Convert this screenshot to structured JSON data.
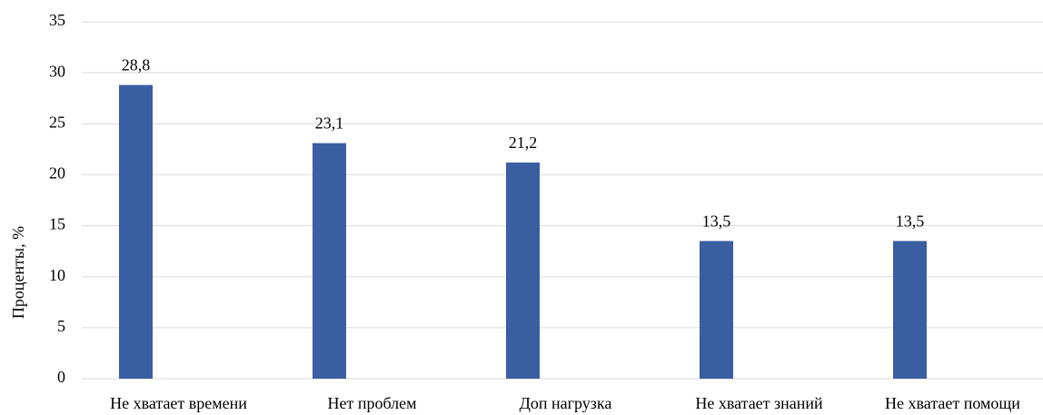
{
  "chart_data": {
    "type": "bar",
    "y_label": "Проценты, %",
    "categories": [
      "Не хватает времени",
      "Нет проблем",
      "Доп нагрузка",
      "Не хватает знаний",
      "Не хватает помощи"
    ],
    "values": [
      28.8,
      23.1,
      21.2,
      13.5,
      13.5
    ],
    "value_labels": [
      "28,8",
      "23,1",
      "21,2",
      "13,5",
      "13,5"
    ],
    "color": "#3a5ea2",
    "ylim": [
      0,
      35
    ],
    "yticks": [
      0,
      5,
      10,
      15,
      20,
      25,
      30,
      35
    ],
    "grid": true
  }
}
